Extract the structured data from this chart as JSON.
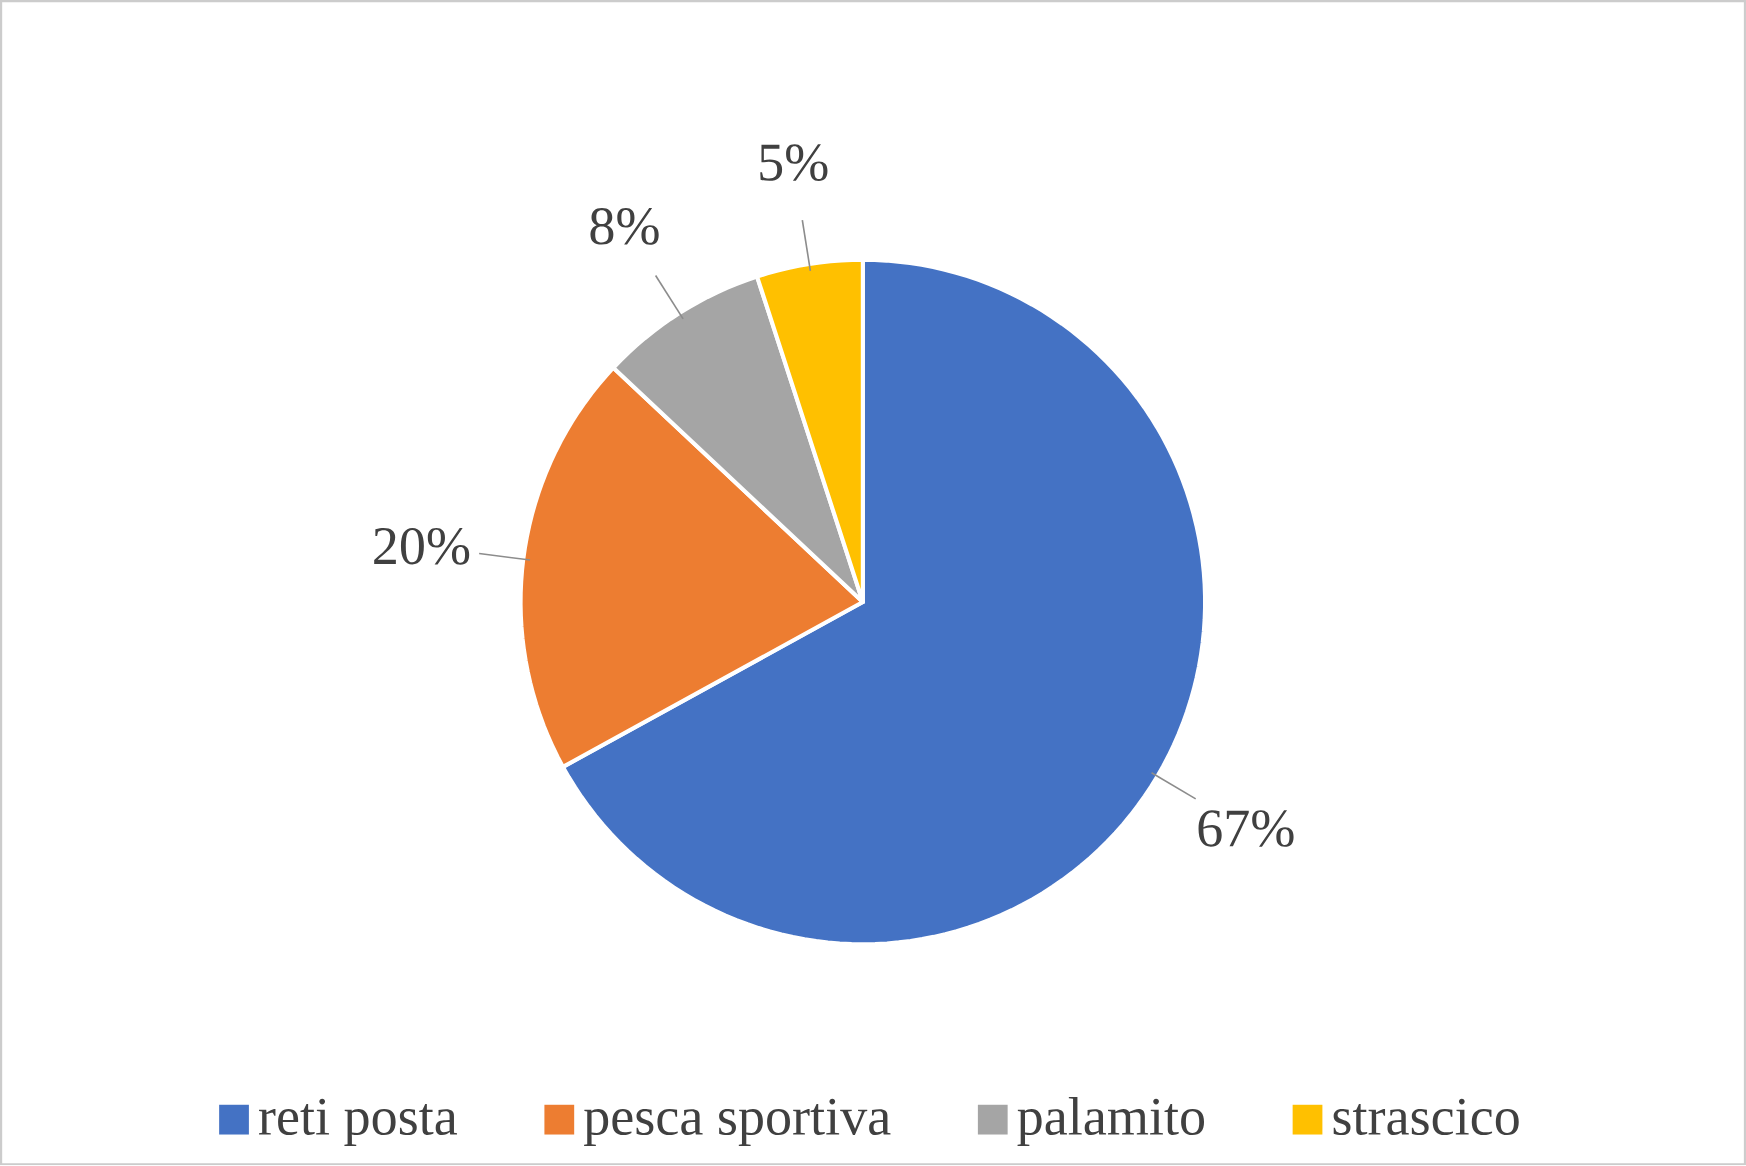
{
  "chart_data": {
    "type": "pie",
    "categories": [
      "reti posta",
      "pesca sportiva",
      "palamito",
      "strascico"
    ],
    "values": [
      67,
      20,
      8,
      5
    ],
    "colors": [
      "#4472c4",
      "#ed7d31",
      "#a5a5a5",
      "#ffc000"
    ],
    "value_labels": [
      "67%",
      "20%",
      "8%",
      "5%"
    ],
    "legend": "bottom"
  }
}
